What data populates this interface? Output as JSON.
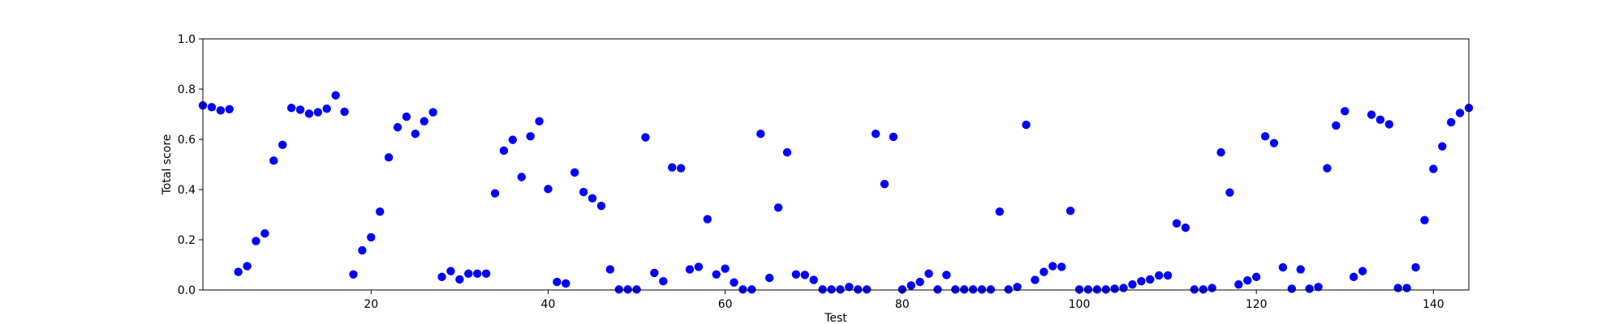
{
  "chart_data": {
    "type": "scatter",
    "title": "",
    "xlabel": "Test",
    "ylabel": "Total score",
    "xlim": [
      1,
      144
    ],
    "ylim": [
      0.0,
      1.0
    ],
    "xticks": [
      20,
      40,
      60,
      80,
      100,
      120,
      140
    ],
    "yticks": [
      0.0,
      0.2,
      0.4,
      0.6,
      0.8,
      1.0
    ],
    "xtick_labels": [
      "20",
      "40",
      "60",
      "80",
      "100",
      "120",
      "140"
    ],
    "ytick_labels": [
      "0.0",
      "0.2",
      "0.4",
      "0.6",
      "0.8",
      "1.0"
    ],
    "grid": false,
    "marker_color": "#0000ff",
    "series": [
      {
        "x": [
          1,
          2,
          3,
          4,
          5,
          6,
          7,
          8,
          9,
          10,
          11,
          12,
          13,
          14,
          15,
          16,
          17,
          18,
          19,
          20,
          21,
          22,
          23,
          24,
          25,
          26,
          27,
          28,
          29,
          30,
          31,
          32,
          33,
          34,
          35,
          36,
          37,
          38,
          39,
          40,
          41,
          42,
          43,
          44,
          45,
          46,
          47,
          48,
          49,
          50,
          51,
          52,
          53,
          54,
          55,
          56,
          57,
          58,
          59,
          60,
          61,
          62,
          63,
          64,
          65,
          66,
          67,
          68,
          69,
          70,
          71,
          72,
          73,
          74,
          75,
          76,
          77,
          78,
          79,
          80,
          81,
          82,
          83,
          84,
          85,
          86,
          87,
          88,
          89,
          90,
          91,
          92,
          93,
          94,
          95,
          96,
          97,
          98,
          99,
          100,
          101,
          102,
          103,
          104,
          105,
          106,
          107,
          108,
          109,
          110,
          111,
          112,
          113,
          114,
          115,
          116,
          117,
          118,
          119,
          120,
          121,
          122,
          123,
          124,
          125,
          126,
          127,
          128,
          129,
          130,
          131,
          132,
          133,
          134,
          135,
          136,
          137,
          138,
          139,
          140,
          141,
          142,
          143,
          144
        ],
        "y": [
          0.735,
          0.728,
          0.715,
          0.72,
          0.072,
          0.095,
          0.195,
          0.225,
          0.515,
          0.578,
          0.725,
          0.718,
          0.702,
          0.708,
          0.722,
          0.775,
          0.71,
          0.062,
          0.158,
          0.21,
          0.312,
          0.528,
          0.648,
          0.69,
          0.622,
          0.672,
          0.708,
          0.052,
          0.075,
          0.042,
          0.065,
          0.065,
          0.065,
          0.385,
          0.555,
          0.598,
          0.45,
          0.612,
          0.672,
          0.402,
          0.032,
          0.026,
          0.468,
          0.39,
          0.365,
          0.335,
          0.082,
          0.002,
          0.002,
          0.002,
          0.608,
          0.068,
          0.035,
          0.488,
          0.485,
          0.082,
          0.092,
          0.282,
          0.062,
          0.085,
          0.03,
          0.002,
          0.002,
          0.622,
          0.048,
          0.328,
          0.548,
          0.062,
          0.06,
          0.04,
          0.002,
          0.002,
          0.002,
          0.012,
          0.002,
          0.002,
          0.622,
          0.422,
          0.61,
          0.002,
          0.018,
          0.032,
          0.065,
          0.002,
          0.06,
          0.002,
          0.002,
          0.002,
          0.002,
          0.002,
          0.312,
          0.002,
          0.012,
          0.658,
          0.04,
          0.072,
          0.095,
          0.092,
          0.315,
          0.002,
          0.002,
          0.002,
          0.002,
          0.005,
          0.008,
          0.022,
          0.035,
          0.042,
          0.058,
          0.058,
          0.265,
          0.248,
          0.002,
          0.002,
          0.008,
          0.548,
          0.388,
          0.022,
          0.038,
          0.052,
          0.612,
          0.585,
          0.09,
          0.005,
          0.082,
          0.005,
          0.012,
          0.485,
          0.655,
          0.712,
          0.052,
          0.075,
          0.698,
          0.678,
          0.66,
          0.008,
          0.008,
          0.09,
          0.278,
          0.482,
          0.572,
          0.668,
          0.705,
          0.725
        ]
      }
    ]
  }
}
